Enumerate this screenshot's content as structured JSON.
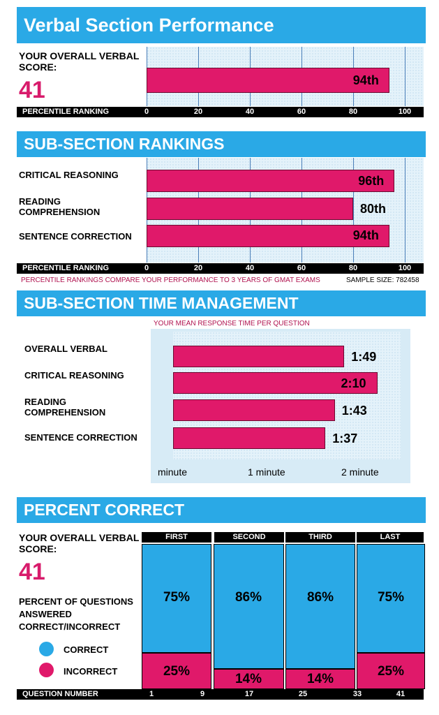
{
  "section1": {
    "title": "Verbal Section Performance",
    "score_label": "YOUR OVERALL VERBAL SCORE:",
    "score": "41",
    "axis_label": "PERCENTILE RANKING",
    "ticks": [
      "0",
      "20",
      "40",
      "60",
      "80",
      "100"
    ],
    "bar_label": "94th"
  },
  "section2": {
    "title": "SUB-SECTION RANKINGS",
    "axis_label": "PERCENTILE RANKING",
    "ticks": [
      "0",
      "20",
      "40",
      "60",
      "80",
      "100"
    ],
    "rows": [
      {
        "label": "CRITICAL REASONING",
        "value_label": "96th"
      },
      {
        "label": "READING COMPREHENSION",
        "value_label": "80th"
      },
      {
        "label": "SENTENCE CORRECTION",
        "value_label": "94th"
      }
    ],
    "footnote": "PERCENTILE RANKINGS COMPARE YOUR PERFORMANCE TO 3 YEARS OF GMAT EXAMS",
    "sample_size": "SAMPLE SIZE: 782458"
  },
  "section3": {
    "title": "SUB-SECTION TIME MANAGEMENT",
    "subtitle": "YOUR MEAN RESPONSE TIME PER QUESTION",
    "rows": [
      {
        "label": "OVERALL VERBAL",
        "value_label": "1:49"
      },
      {
        "label": "CRITICAL REASONING",
        "value_label": "2:10"
      },
      {
        "label": "READING COMPREHENSION",
        "value_label": "1:43"
      },
      {
        "label": "SENTENCE CORRECTION",
        "value_label": "1:37"
      }
    ],
    "x_labels": [
      "minute",
      "1 minute",
      "2 minute"
    ]
  },
  "section4": {
    "title": "PERCENT CORRECT",
    "score_label": "YOUR OVERALL VERBAL SCORE:",
    "score": "41",
    "description": "PERCENT OF QUESTIONS ANSWERED CORRECT/INCORRECT",
    "legend_correct": "CORRECT",
    "legend_incorrect": "INCORRECT",
    "columns": [
      {
        "label": "FIRST",
        "correct_label": "75%",
        "incorrect_label": "25%"
      },
      {
        "label": "SECOND",
        "correct_label": "86%",
        "incorrect_label": "14%"
      },
      {
        "label": "THIRD",
        "correct_label": "86%",
        "incorrect_label": "14%"
      },
      {
        "label": "LAST",
        "correct_label": "75%",
        "incorrect_label": "25%"
      }
    ],
    "axis_label": "QUESTION NUMBER",
    "question_ticks": [
      "1",
      "9",
      "17",
      "25",
      "33",
      "41"
    ]
  },
  "colors": {
    "blue": "#2aa9e6",
    "pink": "#e0196a",
    "black": "#000000"
  },
  "chart_data": [
    {
      "type": "bar",
      "orientation": "horizontal",
      "title": "Verbal Section Performance",
      "categories": [
        "Overall Verbal"
      ],
      "values": [
        94
      ],
      "xlabel": "PERCENTILE RANKING",
      "xlim": [
        0,
        100
      ]
    },
    {
      "type": "bar",
      "orientation": "horizontal",
      "title": "SUB-SECTION RANKINGS",
      "categories": [
        "CRITICAL REASONING",
        "READING COMPREHENSION",
        "SENTENCE CORRECTION"
      ],
      "values": [
        96,
        80,
        94
      ],
      "xlabel": "PERCENTILE RANKING",
      "xlim": [
        0,
        100
      ]
    },
    {
      "type": "bar",
      "orientation": "horizontal",
      "title": "SUB-SECTION TIME MANAGEMENT",
      "subtitle": "YOUR MEAN RESPONSE TIME PER QUESTION",
      "categories": [
        "OVERALL VERBAL",
        "CRITICAL REASONING",
        "READING COMPREHENSION",
        "SENTENCE CORRECTION"
      ],
      "values_seconds": [
        109,
        130,
        103,
        97
      ],
      "xlim_seconds": [
        0,
        150
      ]
    },
    {
      "type": "bar",
      "stacked": true,
      "title": "PERCENT CORRECT",
      "categories": [
        "FIRST",
        "SECOND",
        "THIRD",
        "LAST"
      ],
      "series": [
        {
          "name": "CORRECT",
          "values": [
            75,
            86,
            86,
            75
          ]
        },
        {
          "name": "INCORRECT",
          "values": [
            25,
            14,
            14,
            25
          ]
        }
      ],
      "xlabel": "QUESTION NUMBER",
      "ylim": [
        0,
        100
      ]
    }
  ]
}
